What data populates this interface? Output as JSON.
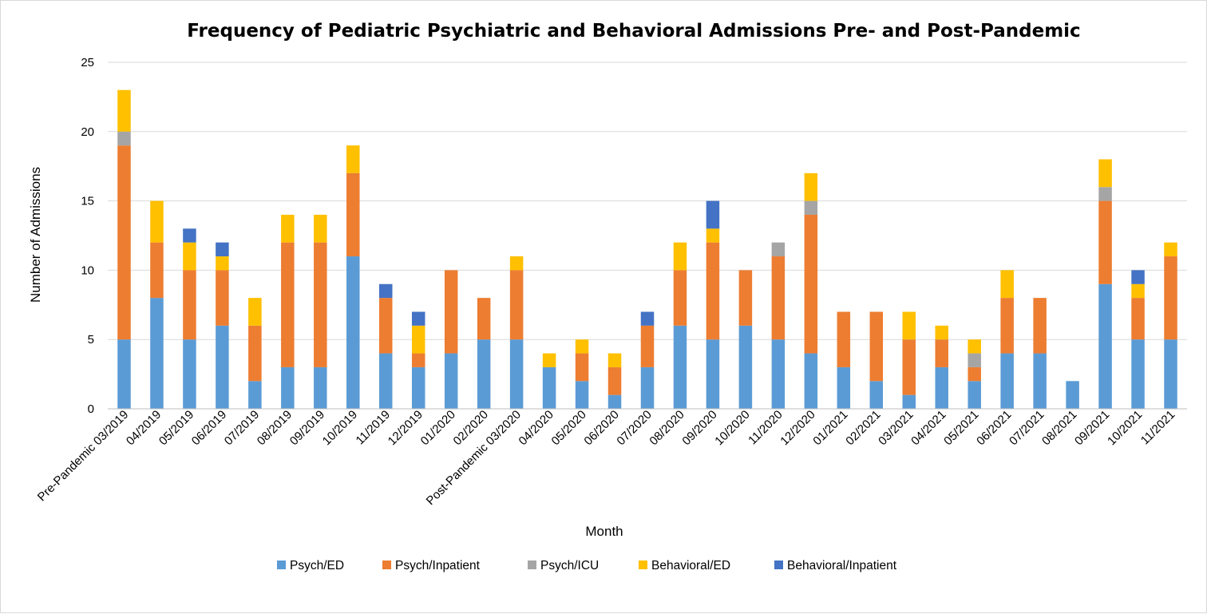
{
  "chart_data": {
    "type": "bar",
    "stacked": true,
    "title": "Frequency of Pediatric Psychiatric and Behavioral Admissions Pre- and Post-Pandemic",
    "xlabel": "Month",
    "ylabel": "Number of Admissions",
    "ylim": [
      0,
      25
    ],
    "yticks": [
      0,
      5,
      10,
      15,
      20,
      25
    ],
    "grid": true,
    "legend_position": "bottom",
    "categories": [
      "Pre-Pandemic 03/2019",
      "04/2019",
      "05/2019",
      "06/2019",
      "07/2019",
      "08/2019",
      "09/2019",
      "10/2019",
      "11/2019",
      "12/2019",
      "01/2020",
      "02/2020",
      "Post-Pandemic 03/2020",
      "04/2020",
      "05/2020",
      "06/2020",
      "07/2020",
      "08/2020",
      "09/2020",
      "10/2020",
      "11/2020",
      "12/2020",
      "01/2021",
      "02/2021",
      "03/2021",
      "04/2021",
      "05/2021",
      "06/2021",
      "07/2021",
      "08/2021",
      "09/2021",
      "10/2021",
      "11/2021"
    ],
    "series": [
      {
        "name": "Psych/ED",
        "color": "#5b9bd5",
        "values": [
          5,
          8,
          5,
          6,
          2,
          3,
          3,
          11,
          4,
          3,
          4,
          5,
          5,
          3,
          2,
          1,
          3,
          6,
          5,
          6,
          5,
          4,
          3,
          2,
          1,
          3,
          2,
          4,
          4,
          2,
          9,
          5,
          5
        ]
      },
      {
        "name": "Psych/Inpatient",
        "color": "#ed7d31",
        "values": [
          14,
          4,
          5,
          4,
          4,
          9,
          9,
          6,
          4,
          1,
          6,
          3,
          5,
          0,
          2,
          2,
          3,
          4,
          7,
          4,
          6,
          10,
          4,
          5,
          4,
          2,
          1,
          4,
          4,
          0,
          6,
          3,
          6
        ]
      },
      {
        "name": "Psych/ICU",
        "color": "#a5a5a5",
        "values": [
          1,
          0,
          0,
          0,
          0,
          0,
          0,
          0,
          0,
          0,
          0,
          0,
          0,
          0,
          0,
          0,
          0,
          0,
          0,
          0,
          1,
          1,
          0,
          0,
          0,
          0,
          1,
          0,
          0,
          0,
          1,
          0,
          0
        ]
      },
      {
        "name": "Behavioral/ED",
        "color": "#ffc000",
        "values": [
          3,
          3,
          2,
          1,
          2,
          2,
          2,
          2,
          0,
          2,
          0,
          0,
          1,
          1,
          1,
          1,
          0,
          2,
          1,
          0,
          0,
          2,
          0,
          0,
          2,
          1,
          1,
          2,
          0,
          0,
          2,
          1,
          1
        ]
      },
      {
        "name": "Behavioral/Inpatient",
        "color": "#4472c4",
        "values": [
          0,
          0,
          1,
          1,
          0,
          0,
          0,
          0,
          1,
          1,
          0,
          0,
          0,
          0,
          0,
          0,
          1,
          0,
          2,
          0,
          0,
          0,
          0,
          0,
          0,
          0,
          0,
          0,
          0,
          0,
          0,
          1,
          0
        ]
      }
    ]
  }
}
